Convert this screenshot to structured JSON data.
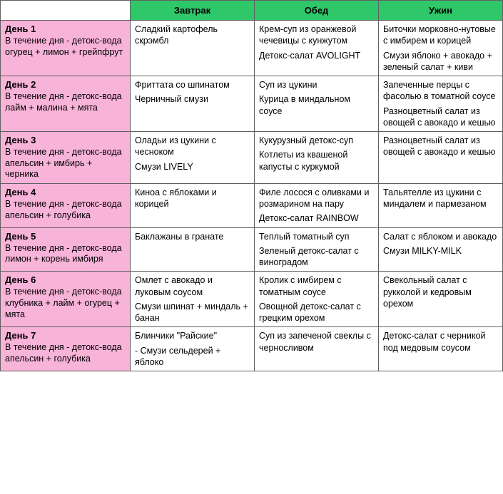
{
  "colors": {
    "header_bg": "#2ec76a",
    "day_bg": "#f8b3d9",
    "border": "#606060",
    "text": "#000000",
    "cell_bg": "#ffffff"
  },
  "headers": {
    "breakfast": "Завтрак",
    "lunch": "Обед",
    "dinner": "Ужин"
  },
  "days": [
    {
      "title": "День 1",
      "sub": "В течение дня - детокс-вода огурец + лимон + грейпфрут",
      "breakfast": [
        "Сладкий картофель скрэмбл"
      ],
      "lunch": [
        "Крем-суп из оранжевой чечевицы с кунжутом",
        "Детокс-салат AVOLIGHT"
      ],
      "dinner": [
        "Биточки морковно-нутовые с имбирем и корицей",
        "Смузи яблоко + авокадо + зеленый салат + киви"
      ]
    },
    {
      "title": "День 2",
      "sub": "В течение дня - детокс-вода лайм + малина + мята",
      "breakfast": [
        "Фриттата со шпинатом",
        "Черничный смузи"
      ],
      "lunch": [
        "Суп из цукини",
        "Курица в миндальном соусе"
      ],
      "dinner": [
        "Запеченные перцы с фасолью в томатной соусе",
        "Разноцветный салат из овощей с авокадо и кешью"
      ]
    },
    {
      "title": "День 3",
      "sub": "В течение дня - детокс-вода апельсин + имбирь + черника",
      "breakfast": [
        "Оладьи из цукини с чесноком",
        "Смузи LIVELY"
      ],
      "lunch": [
        "Кукурузный детокс-суп",
        "Котлеты из квашеной капусты с куркумой"
      ],
      "dinner": [
        "Разноцветный салат из овощей с авокадо и кешью"
      ]
    },
    {
      "title": "День 4",
      "sub": "В течение дня - детокс-вода апельсин + голубика",
      "breakfast": [
        "Киноа с яблоками и корицей"
      ],
      "lunch": [
        "Филе лосося с оливками и розмарином на пару",
        "Детокс-салат RAINBOW"
      ],
      "dinner": [
        "Тальятелле из цукини с миндалем и пармезаном"
      ]
    },
    {
      "title": "День 5",
      "sub": "В течение дня - детокс-вода лимон + корень имбиря",
      "breakfast": [
        "Баклажаны в гранате"
      ],
      "lunch": [
        "Теплый томатный суп",
        "Зеленый детокс-салат с виноградом"
      ],
      "dinner": [
        "Салат с яблоком и авокадо",
        "Смузи MILKY-MILK"
      ]
    },
    {
      "title": "День 6",
      "sub": "В течение дня - детокс-вода клубника + лайм + огурец + мята",
      "breakfast": [
        "Омлет с авокадо и луковым соусом",
        "Смузи шпинат + миндаль + банан"
      ],
      "lunch": [
        "Кролик с имбирем с томатным соусе",
        "Овощной детокс-салат с грецким орехом"
      ],
      "dinner": [
        "Свекольный салат с рукколой и кедровым орехом"
      ]
    },
    {
      "title": "День 7",
      "sub": "В течение дня - детокс-вода апельсин + голубика",
      "breakfast": [
        "  Блинчики \"Райские\"",
        "- Смузи сельдерей + яблоко"
      ],
      "lunch": [
        "Суп из запеченой свеклы с черносливом"
      ],
      "dinner": [
        "Детокс-салат с черникой под медовым соусом"
      ]
    }
  ]
}
